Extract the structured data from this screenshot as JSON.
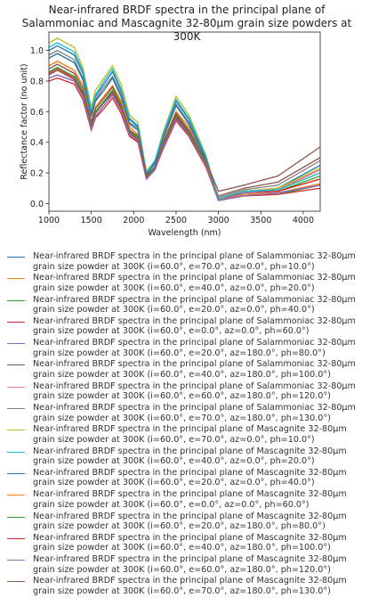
{
  "chart_data": {
    "type": "line",
    "title": "Near-infrared BRDF spectra in the principal plane of Salammoniac and Mascagnite 32-80µm grain size powders at 300K",
    "x_label": "Wavelength (nm)",
    "y_label": "Reflectance factor (no unit)",
    "xlim": [
      1000,
      4200
    ],
    "ylim": [
      -0.05,
      1.12
    ],
    "xticks": [
      1000,
      1500,
      2000,
      2500,
      3000,
      3500,
      4000
    ],
    "yticks": [
      {
        "value": 0,
        "label": "0.0"
      },
      0.2,
      0.4,
      0.6,
      0.8,
      {
        "value": 1,
        "label": "1.0"
      }
    ],
    "x": [
      1000,
      1100,
      1200,
      1300,
      1400,
      1500,
      1550,
      1650,
      1750,
      1850,
      1950,
      2050,
      2150,
      2250,
      2350,
      2500,
      2650,
      2850,
      3000,
      3300,
      3700,
      4200
    ],
    "series": [
      {
        "name": "Near-infrared BRDF spectra in the principal plane of Salammoniac 32-80µm grain size powder at 300K (i=60.0°, e=70.0°, az=0.0°, ph=10.0°)",
        "color": "#1f77b4",
        "values": [
          1.0,
          1.03,
          1.0,
          0.97,
          0.85,
          0.6,
          0.7,
          0.78,
          0.86,
          0.74,
          0.55,
          0.5,
          0.2,
          0.27,
          0.45,
          0.67,
          0.55,
          0.3,
          0.03,
          0.08,
          0.1,
          0.25
        ]
      },
      {
        "name": "Near-infrared BRDF spectra in the principal plane of Salammoniac 32-80µm grain size powder at 300K (i=60.0°, e=40.0°, az=0.0°, ph=20.0°)",
        "color": "#ff7f0e",
        "values": [
          0.95,
          0.98,
          0.95,
          0.92,
          0.81,
          0.57,
          0.67,
          0.74,
          0.82,
          0.7,
          0.52,
          0.48,
          0.19,
          0.26,
          0.43,
          0.64,
          0.52,
          0.29,
          0.03,
          0.08,
          0.09,
          0.22
        ]
      },
      {
        "name": "Near-infrared BRDF spectra in the principal plane of Salammoniac 32-80µm grain size powder at 300K (i=60.0°, e=20.0°, az=0.0°, ph=40.0°)",
        "color": "#2ca02c",
        "values": [
          0.88,
          0.91,
          0.88,
          0.85,
          0.75,
          0.53,
          0.62,
          0.69,
          0.76,
          0.65,
          0.48,
          0.44,
          0.18,
          0.24,
          0.4,
          0.59,
          0.48,
          0.26,
          0.03,
          0.07,
          0.08,
          0.18
        ]
      },
      {
        "name": "Near-infrared BRDF spectra in the principal plane of Salammoniac 32-80µm grain size powder at 300K (i=60.0°, e=0.0°, az=0.0°, ph=60.0°)",
        "color": "#d62728",
        "values": [
          0.85,
          0.88,
          0.85,
          0.82,
          0.72,
          0.51,
          0.6,
          0.66,
          0.73,
          0.63,
          0.47,
          0.43,
          0.17,
          0.23,
          0.38,
          0.57,
          0.47,
          0.26,
          0.03,
          0.07,
          0.08,
          0.16
        ]
      },
      {
        "name": "Near-infrared BRDF spectra in the principal plane of Salammoniac 32-80µm grain size powder at 300K (i=60.0°, e=20.0°, az=180.0°, ph=80.0°)",
        "color": "#9467bd",
        "values": [
          0.82,
          0.84,
          0.82,
          0.8,
          0.7,
          0.49,
          0.57,
          0.64,
          0.71,
          0.61,
          0.45,
          0.41,
          0.16,
          0.22,
          0.37,
          0.55,
          0.45,
          0.25,
          0.02,
          0.07,
          0.09,
          0.2
        ]
      },
      {
        "name": "Near-infrared BRDF spectra in the principal plane of Salammoniac 32-80µm grain size powder at 300K (i=60.0°, e=40.0°, az=180.0°, ph=100.0°)",
        "color": "#8c564b",
        "values": [
          0.84,
          0.87,
          0.84,
          0.81,
          0.71,
          0.5,
          0.59,
          0.66,
          0.72,
          0.62,
          0.46,
          0.42,
          0.17,
          0.23,
          0.38,
          0.56,
          0.46,
          0.25,
          0.05,
          0.1,
          0.14,
          0.3
        ]
      },
      {
        "name": "Near-infrared BRDF spectra in the principal plane of Salammoniac 32-80µm grain size powder at 300K (i=60.0°, e=60.0°, az=180.0°, ph=120.0°)",
        "color": "#e377c2",
        "values": [
          0.9,
          0.93,
          0.9,
          0.87,
          0.77,
          0.54,
          0.63,
          0.7,
          0.77,
          0.67,
          0.5,
          0.45,
          0.18,
          0.24,
          0.41,
          0.6,
          0.5,
          0.27,
          0.03,
          0.08,
          0.1,
          0.22
        ]
      },
      {
        "name": "Near-infrared BRDF spectra in the principal plane of Salammoniac 32-80µm grain size powder at 300K (i=60.0°, e=70.0°, az=180.0°, ph=130.0°)",
        "color": "#7f7f7f",
        "values": [
          0.97,
          1.0,
          0.97,
          0.94,
          0.82,
          0.58,
          0.68,
          0.76,
          0.83,
          0.72,
          0.53,
          0.49,
          0.19,
          0.26,
          0.44,
          0.65,
          0.53,
          0.29,
          0.04,
          0.09,
          0.12,
          0.28
        ]
      },
      {
        "name": "Near-infrared BRDF spectra in the principal plane of Mascagnite 32-80µm grain size powder at 300K (i=60.0°, e=70.0°, az=0.0°, ph=10.0°)",
        "color": "#bcbd22",
        "values": [
          1.05,
          1.08,
          1.05,
          1.02,
          0.89,
          0.63,
          0.74,
          0.82,
          0.9,
          0.78,
          0.58,
          0.53,
          0.21,
          0.28,
          0.47,
          0.7,
          0.58,
          0.32,
          0.03,
          0.08,
          0.1,
          0.23
        ]
      },
      {
        "name": "Near-infrared BRDF spectra in the principal plane of Mascagnite 32-80µm grain size powder at 300K (i=60.0°, e=40.0°, az=0.0°, ph=20.0°)",
        "color": "#17becf",
        "values": [
          1.02,
          1.05,
          1.02,
          0.99,
          0.87,
          0.61,
          0.71,
          0.8,
          0.88,
          0.75,
          0.56,
          0.51,
          0.2,
          0.28,
          0.46,
          0.68,
          0.56,
          0.31,
          0.03,
          0.08,
          0.09,
          0.2
        ]
      },
      {
        "name": "Near-infrared BRDF spectra in the principal plane of Mascagnite 32-80µm grain size powder at 300K (i=60.0°, e=20.0°, az=0.0°, ph=40.0°)",
        "color": "#1f77b4",
        "values": [
          0.95,
          0.98,
          0.95,
          0.92,
          0.81,
          0.57,
          0.67,
          0.74,
          0.82,
          0.7,
          0.52,
          0.48,
          0.19,
          0.26,
          0.43,
          0.64,
          0.52,
          0.29,
          0.02,
          0.06,
          0.07,
          0.12
        ]
      },
      {
        "name": "Near-infrared BRDF spectra in the principal plane of Mascagnite 32-80µm grain size powder at 300K (i=60.0°, e=0.0°, az=0.0°, ph=60.0°)",
        "color": "#ff7f0e",
        "values": [
          0.9,
          0.93,
          0.9,
          0.87,
          0.77,
          0.54,
          0.63,
          0.7,
          0.77,
          0.67,
          0.5,
          0.45,
          0.18,
          0.24,
          0.41,
          0.6,
          0.5,
          0.27,
          0.02,
          0.06,
          0.07,
          0.13
        ]
      },
      {
        "name": "Near-infrared BRDF spectra in the principal plane of Mascagnite 32-80µm grain size powder at 300K (i=60.0°, e=20.0°, az=180.0°, ph=80.0°)",
        "color": "#2ca02c",
        "values": [
          0.86,
          0.89,
          0.86,
          0.83,
          0.73,
          0.52,
          0.6,
          0.67,
          0.74,
          0.64,
          0.47,
          0.43,
          0.17,
          0.23,
          0.39,
          0.58,
          0.47,
          0.26,
          0.02,
          0.05,
          0.06,
          0.12
        ]
      },
      {
        "name": "Near-infrared BRDF spectra in the principal plane of Mascagnite 32-80µm grain size powder at 300K (i=60.0°, e=40.0°, az=180.0°, ph=100.0°)",
        "color": "#d62728",
        "values": [
          0.8,
          0.82,
          0.8,
          0.78,
          0.68,
          0.48,
          0.56,
          0.62,
          0.69,
          0.59,
          0.44,
          0.4,
          0.16,
          0.22,
          0.36,
          0.54,
          0.44,
          0.24,
          0.02,
          0.05,
          0.06,
          0.1
        ]
      },
      {
        "name": "Near-infrared BRDF spectra in the principal plane of Mascagnite 32-80µm grain size powder at 300K (i=60.0°, e=60.0°, az=180.0°, ph=120.0°)",
        "color": "#9467bd",
        "values": [
          0.82,
          0.84,
          0.82,
          0.8,
          0.7,
          0.49,
          0.57,
          0.64,
          0.71,
          0.61,
          0.45,
          0.41,
          0.16,
          0.22,
          0.37,
          0.55,
          0.45,
          0.25,
          0.02,
          0.05,
          0.07,
          0.12
        ]
      },
      {
        "name": "Near-infrared BRDF spectra in the principal plane of Mascagnite 32-80µm grain size powder at 300K (i=60.0°, e=70.0°, az=180.0°, ph=130.0°)",
        "color": "#8c564b",
        "values": [
          0.88,
          0.91,
          0.88,
          0.85,
          0.75,
          0.53,
          0.62,
          0.69,
          0.76,
          0.65,
          0.48,
          0.44,
          0.18,
          0.24,
          0.4,
          0.59,
          0.48,
          0.28,
          0.08,
          0.12,
          0.18,
          0.37
        ]
      }
    ]
  }
}
